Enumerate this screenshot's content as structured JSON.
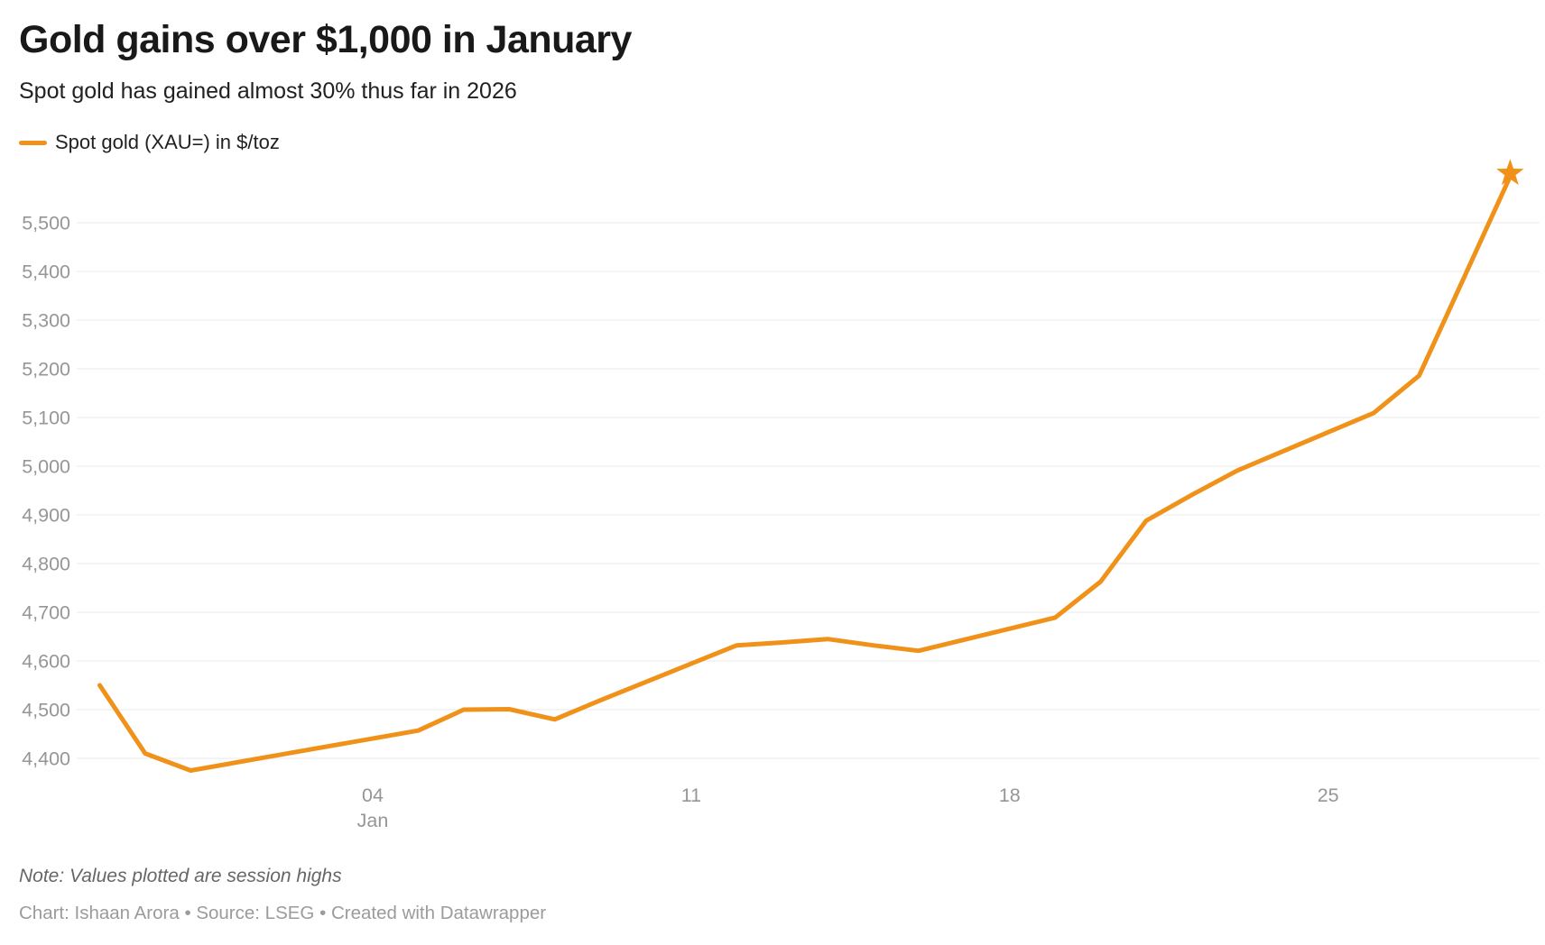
{
  "header": {
    "title": "Gold gains over $1,000 in January",
    "subtitle": "Spot gold has gained almost 30% thus far in 2026"
  },
  "legend": {
    "label": "Spot gold (XAU=) in $/toz",
    "swatch_color": "#F0921A"
  },
  "footer": {
    "note": "Note: Values plotted are session highs",
    "credits": "Chart: Ishaan Arora • Source: LSEG • Created with Datawrapper"
  },
  "colors": {
    "accent": "#F0921A",
    "grid": "#E9E9E9",
    "axis_label": "#969696",
    "title_text": "#191919",
    "body_text": "#212121",
    "note_text": "#666666",
    "credits_text": "#9B9B9B"
  },
  "chart_data": {
    "type": "line",
    "title": "Gold gains over $1,000 in January",
    "subtitle": "Spot gold has gained almost 30% thus far in 2026",
    "note": "Values plotted are session highs",
    "source": "LSEG",
    "grid": "horizontal-only",
    "legend_position": "top-left",
    "end_marker": "star",
    "ylim": [
      4330,
      5620
    ],
    "xlim": [
      "2025-12-28",
      "2026-01-30"
    ],
    "y_ticks": [
      4400,
      4500,
      4600,
      4700,
      4800,
      4900,
      5000,
      5100,
      5200,
      5300,
      5400,
      5500
    ],
    "x_ticks": [
      {
        "label": "04",
        "sublabel": "Jan",
        "date": "2026-01-04"
      },
      {
        "label": "11",
        "sublabel": "",
        "date": "2026-01-11"
      },
      {
        "label": "18",
        "sublabel": "",
        "date": "2026-01-18"
      },
      {
        "label": "25",
        "sublabel": "",
        "date": "2026-01-25"
      }
    ],
    "series": [
      {
        "name": "Spot gold (XAU=) in $/toz",
        "color": "#F0921A",
        "points": [
          [
            "2025-12-29",
            4550
          ],
          [
            "2025-12-30",
            4410
          ],
          [
            "2025-12-31",
            4375
          ],
          [
            "2026-01-02",
            4408
          ],
          [
            "2026-01-05",
            4457
          ],
          [
            "2026-01-06",
            4500
          ],
          [
            "2026-01-07",
            4501
          ],
          [
            "2026-01-08",
            4480
          ],
          [
            "2026-01-09",
            4519
          ],
          [
            "2026-01-12",
            4632
          ],
          [
            "2026-01-13",
            4638
          ],
          [
            "2026-01-14",
            4645
          ],
          [
            "2026-01-15",
            4632
          ],
          [
            "2026-01-16",
            4621
          ],
          [
            "2026-01-19",
            4689
          ],
          [
            "2026-01-20",
            4763
          ],
          [
            "2026-01-21",
            4888
          ],
          [
            "2026-01-22",
            4941
          ],
          [
            "2026-01-23",
            4991
          ],
          [
            "2026-01-26",
            5109
          ],
          [
            "2026-01-27",
            5186
          ],
          [
            "2026-01-28",
            5390
          ],
          [
            "2026-01-29",
            5595
          ]
        ]
      }
    ]
  }
}
